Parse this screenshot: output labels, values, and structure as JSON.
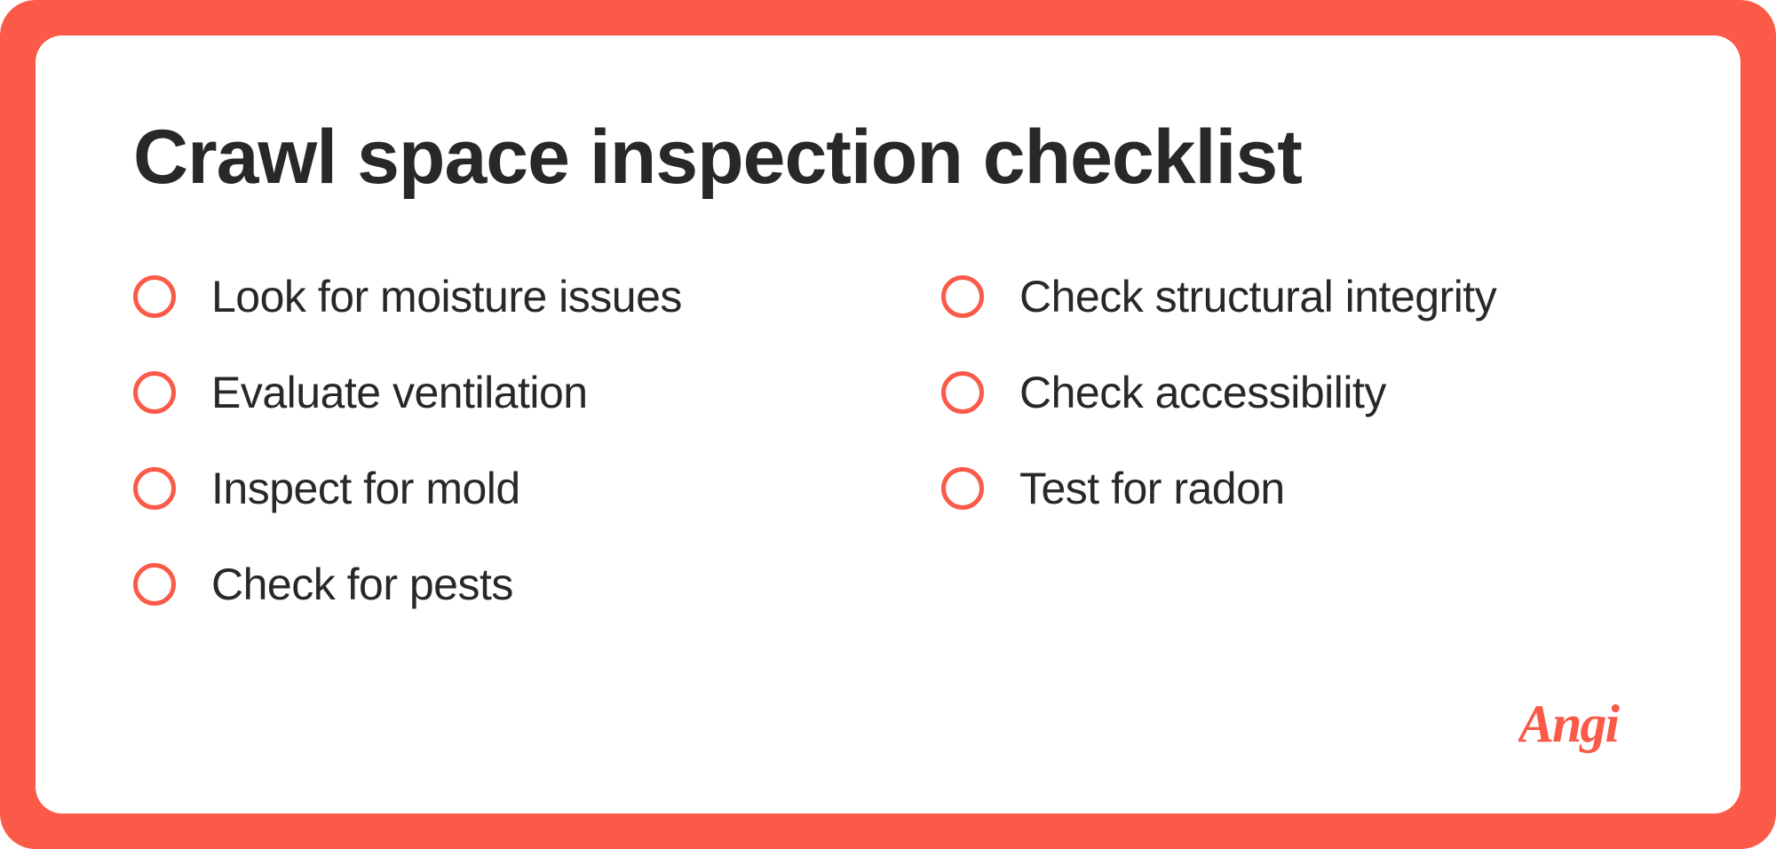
{
  "title": "Crawl space inspection checklist",
  "colors": {
    "accent": "#fa5a47",
    "text": "#282828",
    "background": "#ffffff"
  },
  "typography": {
    "title_fontsize": 86,
    "title_weight": 800,
    "item_fontsize": 50,
    "item_weight": 400,
    "logo_fontsize": 62
  },
  "layout": {
    "outer_radius": 40,
    "inner_radius": 30,
    "border_width": 40,
    "circle_diameter": 48,
    "circle_border": 5
  },
  "columns": [
    {
      "items": [
        {
          "label": "Look for moisture issues"
        },
        {
          "label": "Evaluate ventilation"
        },
        {
          "label": "Inspect for mold"
        },
        {
          "label": "Check for pests"
        }
      ]
    },
    {
      "items": [
        {
          "label": "Check structural integrity"
        },
        {
          "label": "Check accessibility"
        },
        {
          "label": "Test for radon"
        }
      ]
    }
  ],
  "brand": {
    "name": "Angi"
  }
}
